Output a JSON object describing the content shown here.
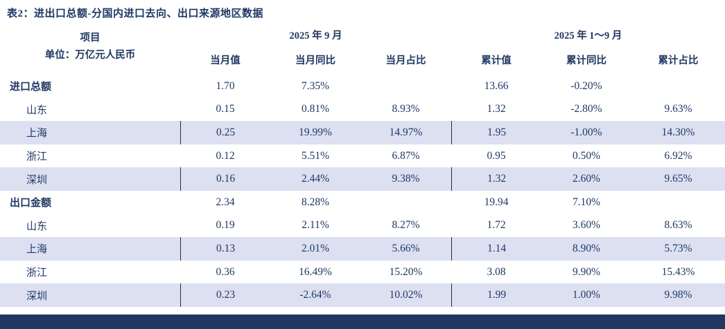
{
  "title": "表2：进出口总额-分国内进口去向、出口来源地区数据",
  "colors": {
    "text_navy": "#1f3864",
    "row_highlight": "#dce0f1",
    "divider": "#2b2b2b",
    "bottom_bar": "#203864"
  },
  "table": {
    "project_header": {
      "line1": "项目",
      "line2": "单位：万亿元人民币"
    },
    "period_current": "2025 年 9 月",
    "period_cumulative": "2025 年 1～9 月",
    "columns_current": [
      "当月值",
      "当月同比",
      "当月占比"
    ],
    "columns_cumulative": [
      "累计值",
      "累计同比",
      "累计占比"
    ],
    "rows": [
      {
        "label": "进口总额",
        "bold": true,
        "highlight": false,
        "values": [
          "1.70",
          "7.35%",
          "",
          "13.66",
          "-0.20%",
          ""
        ]
      },
      {
        "label": "山东",
        "bold": false,
        "highlight": false,
        "values": [
          "0.15",
          "0.81%",
          "8.93%",
          "1.32",
          "-2.80%",
          "9.63%"
        ]
      },
      {
        "label": "上海",
        "bold": false,
        "highlight": true,
        "values": [
          "0.25",
          "19.99%",
          "14.97%",
          "1.95",
          "-1.00%",
          "14.30%"
        ]
      },
      {
        "label": "浙江",
        "bold": false,
        "highlight": false,
        "values": [
          "0.12",
          "5.51%",
          "6.87%",
          "0.95",
          "0.50%",
          "6.92%"
        ]
      },
      {
        "label": "深圳",
        "bold": false,
        "highlight": true,
        "values": [
          "0.16",
          "2.44%",
          "9.38%",
          "1.32",
          "2.60%",
          "9.65%"
        ]
      },
      {
        "label": "出口金额",
        "bold": true,
        "highlight": false,
        "values": [
          "2.34",
          "8.28%",
          "",
          "19.94",
          "7.10%",
          ""
        ]
      },
      {
        "label": "山东",
        "bold": false,
        "highlight": false,
        "values": [
          "0.19",
          "2.11%",
          "8.27%",
          "1.72",
          "3.60%",
          "8.63%"
        ]
      },
      {
        "label": "上海",
        "bold": false,
        "highlight": true,
        "values": [
          "0.13",
          "2.01%",
          "5.66%",
          "1.14",
          "8.90%",
          "5.73%"
        ]
      },
      {
        "label": "浙江",
        "bold": false,
        "highlight": false,
        "values": [
          "0.36",
          "16.49%",
          "15.20%",
          "3.08",
          "9.90%",
          "15.43%"
        ]
      },
      {
        "label": "深圳",
        "bold": false,
        "highlight": true,
        "values": [
          "0.23",
          "-2.64%",
          "10.02%",
          "1.99",
          "1.00%",
          "9.98%"
        ]
      }
    ]
  }
}
